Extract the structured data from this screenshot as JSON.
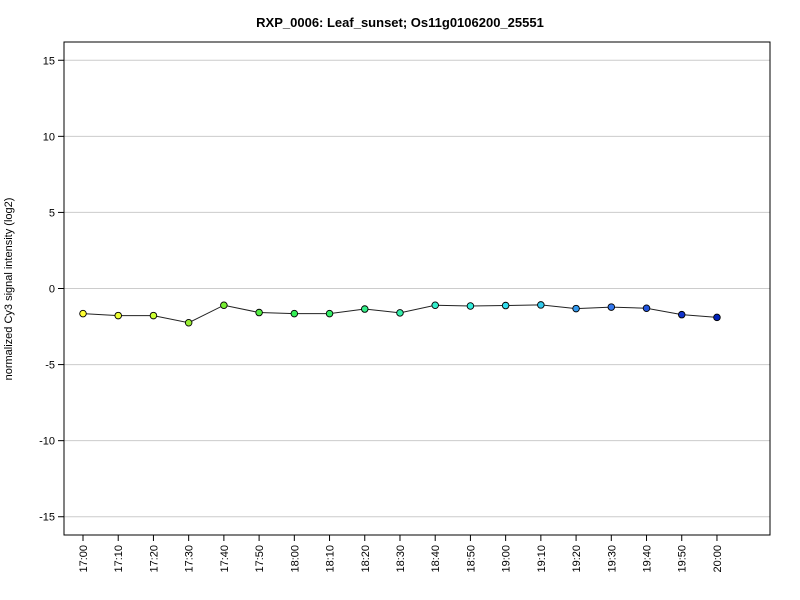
{
  "chart_data": {
    "type": "line",
    "title": "RXP_0006: Leaf_sunset; Os11g0106200_25551",
    "xlabel": "",
    "ylabel": "normalized Cy3 signal intensity (log2)",
    "ylim": [
      -16.2,
      16.2
    ],
    "yticks": [
      -15,
      -10,
      -5,
      0,
      5,
      10,
      15
    ],
    "grid": true,
    "categories": [
      "17:00",
      "17:10",
      "17:20",
      "17:30",
      "17:40",
      "17:50",
      "18:00",
      "18:10",
      "18:20",
      "18:30",
      "18:40",
      "18:50",
      "19:00",
      "19:10",
      "19:20",
      "19:30",
      "19:40",
      "19:50",
      "20:00"
    ],
    "values": [
      -1.65,
      -1.78,
      -1.78,
      -2.25,
      -1.1,
      -1.58,
      -1.65,
      -1.65,
      -1.35,
      -1.6,
      -1.1,
      -1.15,
      -1.12,
      -1.08,
      -1.32,
      -1.22,
      -1.3,
      -1.72,
      -1.9
    ],
    "point_colors": [
      "#FFFF33",
      "#EEFF33",
      "#CCFF33",
      "#99EE33",
      "#77EE33",
      "#55EE44",
      "#33EE55",
      "#33EE66",
      "#33EE88",
      "#33EEAA",
      "#33EECC",
      "#33EEDD",
      "#33DDEE",
      "#33CCEE",
      "#3399EE",
      "#3377EE",
      "#2255DD",
      "#1133CC",
      "#0022BB"
    ]
  }
}
